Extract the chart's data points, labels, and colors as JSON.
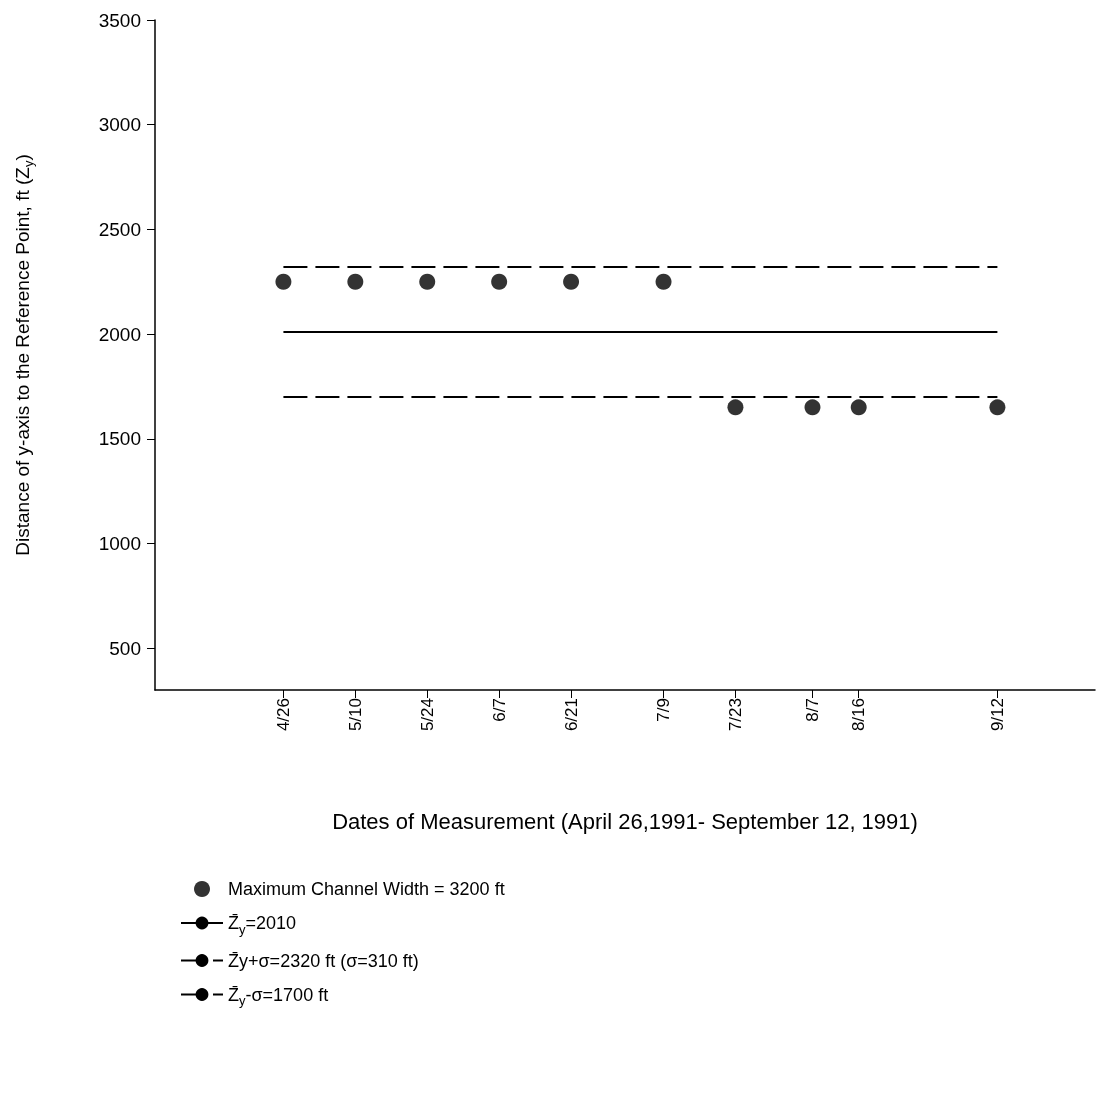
{
  "chart_data": {
    "type": "scatter",
    "xlabel": "Dates of Measurement (April 26,1991- September 12, 1991)",
    "ylabel": "Distance of y-axis to the Reference Point, ft (Z$_{y}$)",
    "x": [
      "--04-26",
      "--05-10",
      "--05-24",
      "--06-07",
      "--06-21",
      "--07-09",
      "--07-23",
      "--08-07",
      "--08-16",
      "--09-12"
    ],
    "series": [
      {
        "name": "Maximum Channel Width = 3200 ft",
        "color": "#000000",
        "values": [
          2250,
          2250,
          2250,
          2250,
          2250,
          2250,
          1650,
          1650,
          1650,
          1650
        ],
        "marker": "circle"
      },
      {
        "name": "Z̄$_{y}$=2010",
        "type": "line",
        "color": "#000000",
        "x": [
          "--04-26",
          "--09-12"
        ],
        "values": [
          2010,
          2010
        ],
        "line_style": "solid",
        "marker": "none"
      },
      {
        "name": "Z̄y+σ=2320 ft (σ=310 ft)",
        "type": "line",
        "color": "#000000",
        "x": [
          "--04-26",
          "--09-12"
        ],
        "values": [
          2320,
          2320
        ],
        "line_style": "dashed",
        "marker": "none"
      },
      {
        "name": "Z̄$_{y}$-σ=1700 ft",
        "type": "line",
        "color": "#000000",
        "x": [
          "--04-26",
          "--09-12"
        ],
        "values": [
          1700,
          1700
        ],
        "line_style": "dashed",
        "marker": "none"
      }
    ],
    "xlim": [
      "--04-01",
      "--10-01"
    ],
    "xticks": [
      {
        "value": "--04-26",
        "label": "4/26"
      },
      {
        "value": "--05-10",
        "label": "5/10"
      },
      {
        "value": "--05-24",
        "label": "5/24"
      },
      {
        "value": "--06-07",
        "label": "6/7"
      },
      {
        "value": "--06-21",
        "label": "6/21"
      },
      {
        "value": "--07-09",
        "label": "7/9"
      },
      {
        "value": "--07-23",
        "label": "7/23"
      },
      {
        "value": "--08-07",
        "label": "8/7"
      },
      {
        "value": "--08-16",
        "label": "8/16"
      },
      {
        "value": "--09-12",
        "label": "9/12"
      }
    ],
    "ylim": [
      300,
      3500
    ],
    "yticks": [
      500,
      1000,
      1500,
      2000,
      2500,
      3000,
      3500
    ],
    "grid": false,
    "legend": "bottom"
  }
}
